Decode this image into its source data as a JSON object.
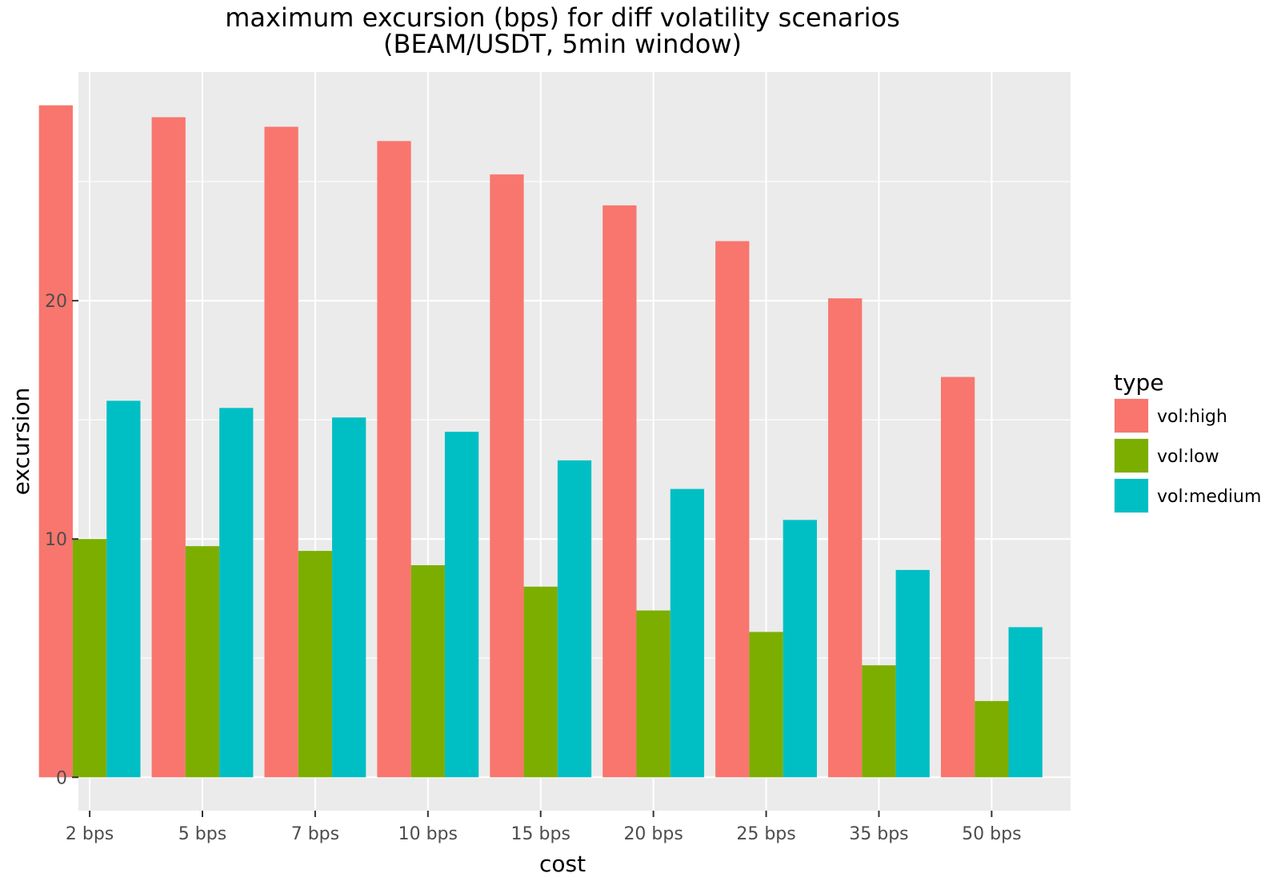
{
  "chart_data": {
    "type": "bar",
    "title": "maximum excursion (bps) for diff volatility scenarios",
    "subtitle": "(BEAM/USDT, 5min window)",
    "xlabel": "cost",
    "ylabel": "excursion",
    "categories": [
      "2 bps",
      "5 bps",
      "7 bps",
      "10 bps",
      "15 bps",
      "20 bps",
      "25 bps",
      "35 bps",
      "50 bps"
    ],
    "series": [
      {
        "name": "vol:high",
        "color": "#F8766D",
        "values": [
          28.2,
          27.7,
          27.3,
          26.7,
          25.3,
          24.0,
          22.5,
          20.1,
          16.8
        ]
      },
      {
        "name": "vol:low",
        "color": "#7CAE00",
        "values": [
          10.0,
          9.7,
          9.5,
          8.9,
          8.0,
          7.0,
          6.1,
          4.7,
          3.2
        ]
      },
      {
        "name": "vol:medium",
        "color": "#00BFC4",
        "values": [
          15.8,
          15.5,
          15.1,
          14.5,
          13.3,
          12.1,
          10.8,
          8.7,
          6.3
        ]
      }
    ],
    "ylim": [
      -1.4,
      29.6
    ],
    "yticks": [
      0,
      10,
      20
    ],
    "grid": true,
    "legend": {
      "title": "type",
      "position": "right"
    }
  }
}
